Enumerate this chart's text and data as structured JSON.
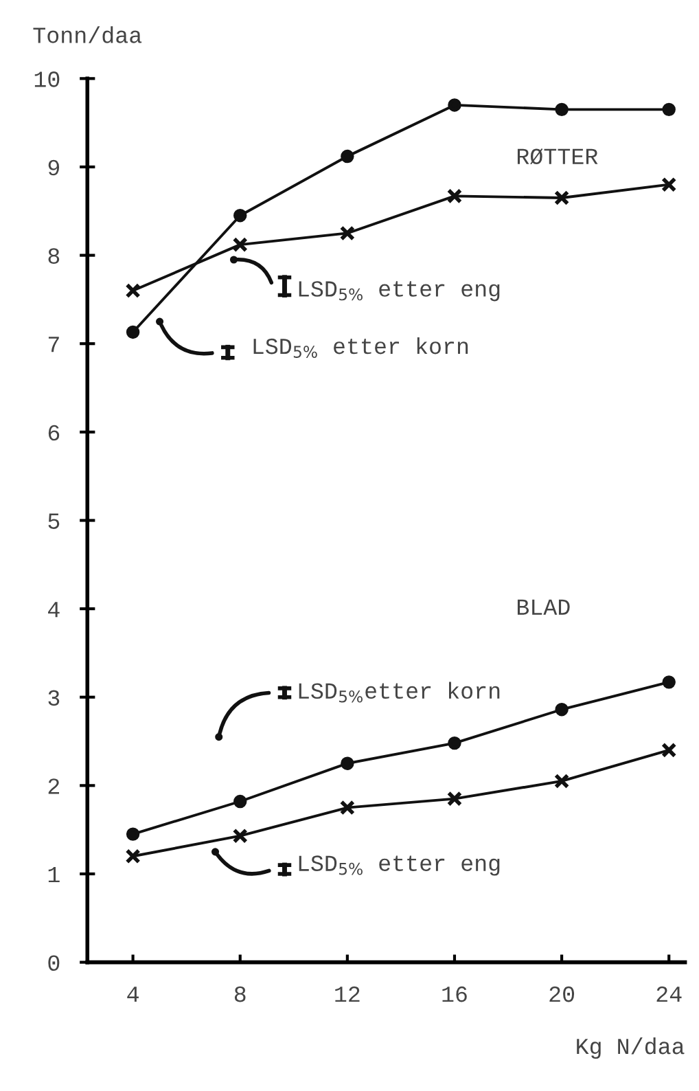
{
  "chart_data": {
    "type": "line",
    "xlabel": "Kg N/daa",
    "ylabel": "Tonn/daa",
    "x": [
      4,
      8,
      12,
      16,
      20,
      24
    ],
    "series": [
      {
        "color": "#111111",
        "marker": "circle",
        "values": [
          7.13,
          8.45,
          9.12,
          9.7,
          9.65,
          9.65
        ]
      },
      {
        "color": "#111111",
        "marker": "cross",
        "values": [
          7.6,
          8.12,
          8.25,
          8.67,
          8.65,
          8.8
        ]
      },
      {
        "color": "#111111",
        "marker": "circle",
        "values": [
          1.45,
          1.82,
          2.25,
          2.48,
          2.86,
          3.17
        ]
      },
      {
        "color": "#111111",
        "marker": "cross",
        "values": [
          1.2,
          1.43,
          1.75,
          1.85,
          2.05,
          2.4
        ]
      }
    ],
    "xlim": [
      2.3,
      24.6
    ],
    "ylim": [
      0,
      10
    ],
    "xticks": [
      4,
      8,
      12,
      16,
      20,
      24
    ],
    "yticks": [
      0,
      1,
      2,
      3,
      4,
      5,
      6,
      7,
      8,
      9,
      10
    ],
    "grid": false,
    "line_style": "solid",
    "annotations": [
      "RØTTER",
      "LSD$_{5%}$ etter eng",
      "LSD$_{5%}$ etter korn",
      "BLAD",
      "LSD$_{5%}$etter korn",
      "LSD$_{5%}$ etter eng"
    ]
  }
}
